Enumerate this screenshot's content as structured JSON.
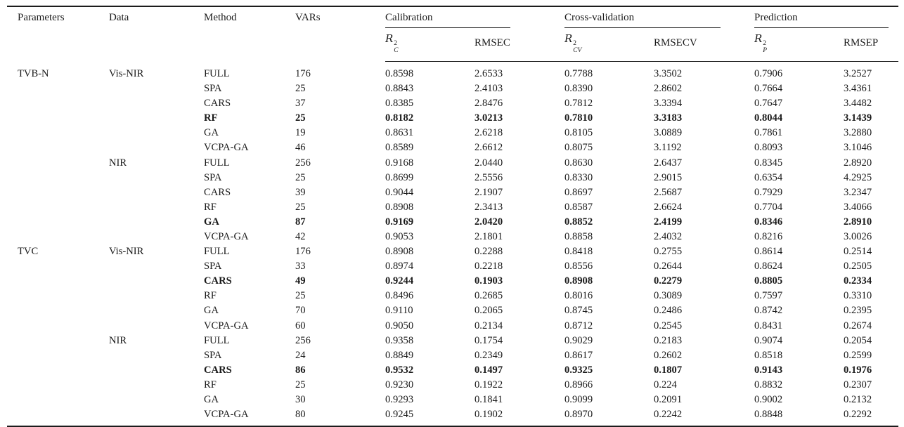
{
  "page": {
    "background_color": "#ffffff",
    "text_color": "#1a1a1a",
    "rule_color": "#1c1c1c"
  },
  "header": {
    "parameters": "Parameters",
    "data": "Data",
    "method": "Method",
    "vars": "VARs",
    "groups": {
      "calibration": "Calibration",
      "cross_validation": "Cross-validation",
      "prediction": "Prediction"
    },
    "r2c": {
      "base": "R",
      "sup": "2",
      "sub": "C"
    },
    "rmsec": "RMSEC",
    "r2cv": {
      "base": "R",
      "sup": "2",
      "sub": "CV"
    },
    "rmsecv": "RMSECV",
    "r2p": {
      "base": "R",
      "sup": "2",
      "sub": "P"
    },
    "rmsep": "RMSEP"
  },
  "rows": [
    {
      "parameter": "TVB-N",
      "data": "Vis-NIR",
      "method": "FULL",
      "vars": "176",
      "r2c": "0.8598",
      "rmsec": "2.6533",
      "r2cv": "0.7788",
      "rmsecv": "3.3502",
      "r2p": "0.7906",
      "rmsep": "3.2527",
      "bold": false
    },
    {
      "parameter": "",
      "data": "",
      "method": "SPA",
      "vars": "25",
      "r2c": "0.8843",
      "rmsec": "2.4103",
      "r2cv": "0.8390",
      "rmsecv": "2.8602",
      "r2p": "0.7664",
      "rmsep": "3.4361",
      "bold": false
    },
    {
      "parameter": "",
      "data": "",
      "method": "CARS",
      "vars": "37",
      "r2c": "0.8385",
      "rmsec": "2.8476",
      "r2cv": "0.7812",
      "rmsecv": "3.3394",
      "r2p": "0.7647",
      "rmsep": "3.4482",
      "bold": false
    },
    {
      "parameter": "",
      "data": "",
      "method": "RF",
      "vars": "25",
      "r2c": "0.8182",
      "rmsec": "3.0213",
      "r2cv": "0.7810",
      "rmsecv": "3.3183",
      "r2p": "0.8044",
      "rmsep": "3.1439",
      "bold": true
    },
    {
      "parameter": "",
      "data": "",
      "method": "GA",
      "vars": "19",
      "r2c": "0.8631",
      "rmsec": "2.6218",
      "r2cv": "0.8105",
      "rmsecv": "3.0889",
      "r2p": "0.7861",
      "rmsep": "3.2880",
      "bold": false
    },
    {
      "parameter": "",
      "data": "",
      "method": "VCPA-GA",
      "vars": "46",
      "r2c": "0.8589",
      "rmsec": "2.6612",
      "r2cv": "0.8075",
      "rmsecv": "3.1192",
      "r2p": "0.8093",
      "rmsep": "3.1046",
      "bold": false
    },
    {
      "parameter": "",
      "data": "NIR",
      "method": "FULL",
      "vars": "256",
      "r2c": "0.9168",
      "rmsec": "2.0440",
      "r2cv": "0.8630",
      "rmsecv": "2.6437",
      "r2p": "0.8345",
      "rmsep": "2.8920",
      "bold": false
    },
    {
      "parameter": "",
      "data": "",
      "method": "SPA",
      "vars": "25",
      "r2c": "0.8699",
      "rmsec": "2.5556",
      "r2cv": "0.8330",
      "rmsecv": "2.9015",
      "r2p": "0.6354",
      "rmsep": "4.2925",
      "bold": false
    },
    {
      "parameter": "",
      "data": "",
      "method": "CARS",
      "vars": "39",
      "r2c": "0.9044",
      "rmsec": "2.1907",
      "r2cv": "0.8697",
      "rmsecv": "2.5687",
      "r2p": "0.7929",
      "rmsep": "3.2347",
      "bold": false
    },
    {
      "parameter": "",
      "data": "",
      "method": "RF",
      "vars": "25",
      "r2c": "0.8908",
      "rmsec": "2.3413",
      "r2cv": "0.8587",
      "rmsecv": "2.6624",
      "r2p": "0.7704",
      "rmsep": "3.4066",
      "bold": false
    },
    {
      "parameter": "",
      "data": "",
      "method": "GA",
      "vars": "87",
      "r2c": "0.9169",
      "rmsec": "2.0420",
      "r2cv": "0.8852",
      "rmsecv": "2.4199",
      "r2p": "0.8346",
      "rmsep": "2.8910",
      "bold": true
    },
    {
      "parameter": "",
      "data": "",
      "method": "VCPA-GA",
      "vars": "42",
      "r2c": "0.9053",
      "rmsec": "2.1801",
      "r2cv": "0.8858",
      "rmsecv": "2.4032",
      "r2p": "0.8216",
      "rmsep": "3.0026",
      "bold": false
    },
    {
      "parameter": "TVC",
      "data": "Vis-NIR",
      "method": "FULL",
      "vars": "176",
      "r2c": "0.8908",
      "rmsec": "0.2288",
      "r2cv": "0.8418",
      "rmsecv": "0.2755",
      "r2p": "0.8614",
      "rmsep": "0.2514",
      "bold": false
    },
    {
      "parameter": "",
      "data": "",
      "method": "SPA",
      "vars": "33",
      "r2c": "0.8974",
      "rmsec": "0.2218",
      "r2cv": "0.8556",
      "rmsecv": "0.2644",
      "r2p": "0.8624",
      "rmsep": "0.2505",
      "bold": false
    },
    {
      "parameter": "",
      "data": "",
      "method": "CARS",
      "vars": "49",
      "r2c": "0.9244",
      "rmsec": "0.1903",
      "r2cv": "0.8908",
      "rmsecv": "0.2279",
      "r2p": "0.8805",
      "rmsep": "0.2334",
      "bold": true
    },
    {
      "parameter": "",
      "data": "",
      "method": "RF",
      "vars": "25",
      "r2c": "0.8496",
      "rmsec": "0.2685",
      "r2cv": "0.8016",
      "rmsecv": "0.3089",
      "r2p": "0.7597",
      "rmsep": "0.3310",
      "bold": false
    },
    {
      "parameter": "",
      "data": "",
      "method": "GA",
      "vars": "70",
      "r2c": "0.9110",
      "rmsec": "0.2065",
      "r2cv": "0.8745",
      "rmsecv": "0.2486",
      "r2p": "0.8742",
      "rmsep": "0.2395",
      "bold": false
    },
    {
      "parameter": "",
      "data": "",
      "method": "VCPA-GA",
      "vars": "60",
      "r2c": "0.9050",
      "rmsec": "0.2134",
      "r2cv": "0.8712",
      "rmsecv": "0.2545",
      "r2p": "0.8431",
      "rmsep": "0.2674",
      "bold": false
    },
    {
      "parameter": "",
      "data": "NIR",
      "method": "FULL",
      "vars": "256",
      "r2c": "0.9358",
      "rmsec": "0.1754",
      "r2cv": "0.9029",
      "rmsecv": "0.2183",
      "r2p": "0.9074",
      "rmsep": "0.2054",
      "bold": false
    },
    {
      "parameter": "",
      "data": "",
      "method": "SPA",
      "vars": "24",
      "r2c": "0.8849",
      "rmsec": "0.2349",
      "r2cv": "0.8617",
      "rmsecv": "0.2602",
      "r2p": "0.8518",
      "rmsep": "0.2599",
      "bold": false
    },
    {
      "parameter": "",
      "data": "",
      "method": "CARS",
      "vars": "86",
      "r2c": "0.9532",
      "rmsec": "0.1497",
      "r2cv": "0.9325",
      "rmsecv": "0.1807",
      "r2p": "0.9143",
      "rmsep": "0.1976",
      "bold": true
    },
    {
      "parameter": "",
      "data": "",
      "method": "RF",
      "vars": "25",
      "r2c": "0.9230",
      "rmsec": "0.1922",
      "r2cv": "0.8966",
      "rmsecv": "0.224",
      "r2p": "0.8832",
      "rmsep": "0.2307",
      "bold": false
    },
    {
      "parameter": "",
      "data": "",
      "method": "GA",
      "vars": "30",
      "r2c": "0.9293",
      "rmsec": "0.1841",
      "r2cv": "0.9099",
      "rmsecv": "0.2091",
      "r2p": "0.9002",
      "rmsep": "0.2132",
      "bold": false
    },
    {
      "parameter": "",
      "data": "",
      "method": "VCPA-GA",
      "vars": "80",
      "r2c": "0.9245",
      "rmsec": "0.1902",
      "r2cv": "0.8970",
      "rmsecv": "0.2242",
      "r2p": "0.8848",
      "rmsep": "0.2292",
      "bold": false
    }
  ]
}
